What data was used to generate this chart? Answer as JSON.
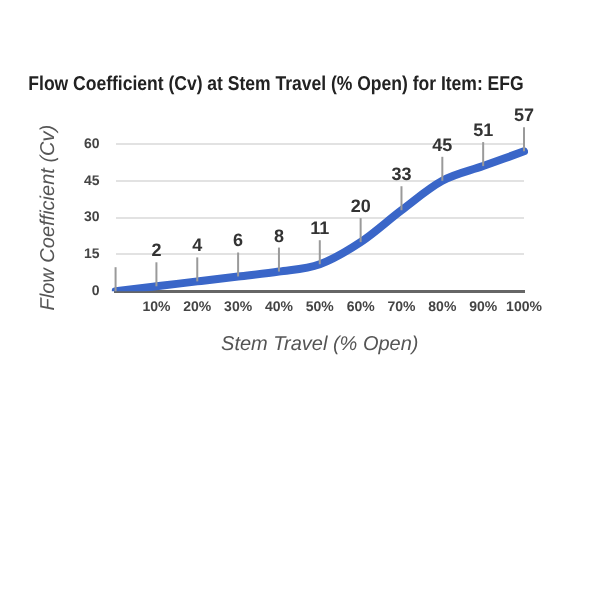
{
  "chart_data": {
    "type": "line",
    "title": "Flow Coefficient (Cv) at Stem Travel (% Open) for Item: EFG",
    "xlabel": "Stem Travel (% Open)",
    "ylabel": "Flow Coefficient (Cv)",
    "categories": [
      null,
      "10%",
      "20%",
      "30%",
      "40%",
      "50%",
      "60%",
      "70%",
      "80%",
      "90%",
      "100%"
    ],
    "series": [
      {
        "color": "#3a66c8",
        "values": [
          0,
          2,
          4,
          6,
          8,
          11,
          20,
          33,
          45,
          51,
          57
        ],
        "value_labels": [
          null,
          "2",
          "4",
          "6",
          "8",
          "11",
          "20",
          "33",
          "45",
          "51",
          "57"
        ]
      }
    ],
    "ylim": [
      0,
      60
    ],
    "yticks": [
      0,
      15,
      30,
      45,
      60
    ],
    "grid": "y",
    "legend": false,
    "marker": "none",
    "line_style": "solid"
  }
}
